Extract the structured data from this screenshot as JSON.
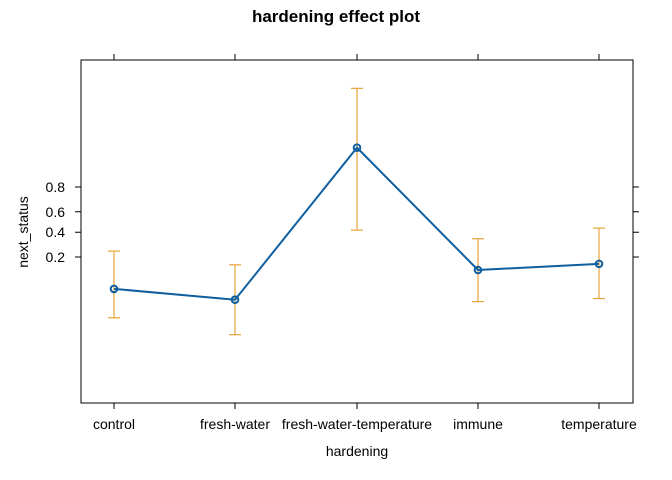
{
  "chart_data": {
    "type": "line",
    "title": "hardening effect plot",
    "xlabel": "hardening",
    "ylabel": "next_status",
    "categories": [
      "control",
      "fresh-water",
      "fresh-water-temperature",
      "immune",
      "temperature"
    ],
    "y_scale": "logit",
    "y_ticks": [
      0.2,
      0.4,
      0.6,
      0.8
    ],
    "y_tick_labels": [
      "0.2",
      "0.4",
      "0.6",
      "0.8"
    ],
    "series": [
      {
        "values": [
          0.066,
          0.044,
          0.95,
          0.13,
          0.16
        ],
        "lower": [
          0.022,
          0.0114,
          0.42,
          0.041,
          0.046
        ],
        "upper": [
          0.24,
          0.155,
          0.995,
          0.34,
          0.44
        ]
      }
    ],
    "colors": {
      "line": "#0f5fa0",
      "errorbar": "#e8a33a",
      "axis": "#000000"
    },
    "grid": false,
    "legend": "none"
  }
}
